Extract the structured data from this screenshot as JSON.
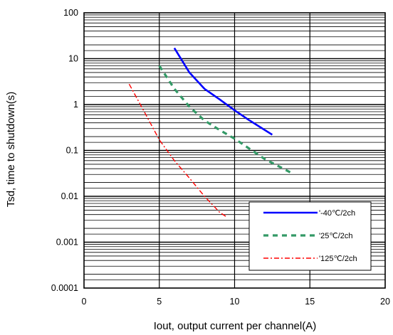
{
  "chart_data": {
    "type": "line",
    "xlabel": "Iout, output current per channel(A)",
    "ylabel": "Tsd, time to shutdown(s)",
    "xlim": [
      0,
      20
    ],
    "ylim": [
      0.0001,
      100
    ],
    "yscale": "log",
    "x_ticks": [
      0,
      5,
      10,
      15,
      20
    ],
    "x_tick_labels": [
      "0",
      "5",
      "10",
      "15",
      "20"
    ],
    "y_ticks": [
      0.0001,
      0.001,
      0.01,
      0.1,
      1,
      10,
      100
    ],
    "y_tick_labels": [
      "0.0001",
      "0.001",
      "0.01",
      "0.1",
      "1",
      "10",
      "100"
    ],
    "grid": true,
    "legend_position": "bottom-right",
    "series": [
      {
        "name": "'-40℃/2ch",
        "color": "#0000ff",
        "style": "solid",
        "points": [
          [
            6,
            17
          ],
          [
            7,
            5
          ],
          [
            8,
            2.2
          ],
          [
            9,
            1.3
          ],
          [
            10,
            0.75
          ],
          [
            11,
            0.45
          ],
          [
            12.5,
            0.22
          ]
        ]
      },
      {
        "name": "'25℃/2ch",
        "color": "#339966",
        "style": "dashed",
        "points": [
          [
            5,
            7
          ],
          [
            6,
            2.2
          ],
          [
            7,
            0.9
          ],
          [
            8,
            0.45
          ],
          [
            9,
            0.28
          ],
          [
            10,
            0.18
          ],
          [
            12,
            0.065
          ],
          [
            13.8,
            0.032
          ]
        ]
      },
      {
        "name": "'125℃/2ch",
        "color": "#ff0000",
        "style": "dashdot",
        "points": [
          [
            3,
            2.8
          ],
          [
            4,
            0.7
          ],
          [
            5,
            0.17
          ],
          [
            6,
            0.06
          ],
          [
            7,
            0.025
          ],
          [
            8,
            0.01
          ],
          [
            9,
            0.0045
          ],
          [
            9.5,
            0.0035
          ]
        ]
      }
    ]
  }
}
